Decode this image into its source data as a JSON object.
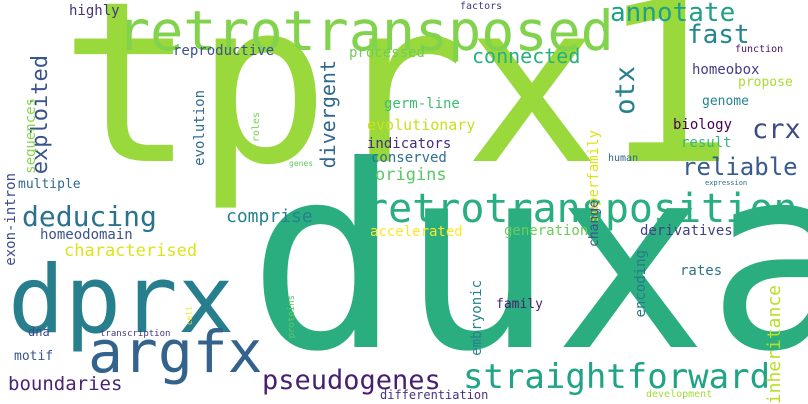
{
  "words": [
    {
      "text": "tprx1",
      "color": "#9ad93c"
    },
    {
      "text": "duxa",
      "color": "#2aae7f"
    },
    {
      "text": "retrotransposed",
      "color": "#81d34d"
    },
    {
      "text": "retrotransposition",
      "color": "#29af7f"
    },
    {
      "text": "dprx",
      "color": "#277f8e"
    },
    {
      "text": "argfx",
      "color": "#33638d"
    },
    {
      "text": "straightforward",
      "color": "#20a486"
    },
    {
      "text": "pseudogenes",
      "color": "#481f70"
    },
    {
      "text": "deducing",
      "color": "#2c728e"
    },
    {
      "text": "annotate",
      "color": "#1fa187"
    },
    {
      "text": "fast",
      "color": "#24868e"
    },
    {
      "text": "connected",
      "color": "#29af7f"
    },
    {
      "text": "reliable",
      "color": "#375b8d"
    },
    {
      "text": "crx",
      "color": "#3e4989"
    },
    {
      "text": "otx",
      "color": "#26818e"
    },
    {
      "text": "comprise",
      "color": "#26828e"
    },
    {
      "text": "characterised",
      "color": "#dde318"
    },
    {
      "text": "exploited",
      "color": "#3a548c"
    },
    {
      "text": "divergent",
      "color": "#31688e"
    },
    {
      "text": "inheritance",
      "color": "#bade28"
    },
    {
      "text": "boundaries",
      "color": "#482475"
    },
    {
      "text": "homeobox",
      "color": "#433e85"
    },
    {
      "text": "reproductive",
      "color": "#3b528b"
    },
    {
      "text": "highly",
      "color": "#46337e"
    },
    {
      "text": "processed",
      "color": "#6ece58"
    },
    {
      "text": "evolutionary",
      "color": "#c8e020"
    },
    {
      "text": "indicators",
      "color": "#472d7b"
    },
    {
      "text": "conserved",
      "color": "#2d708e"
    },
    {
      "text": "origins",
      "color": "#5ac864"
    },
    {
      "text": "germ-line",
      "color": "#3dbc74"
    },
    {
      "text": "evolution",
      "color": "#2f6c8e"
    },
    {
      "text": "biology",
      "color": "#440154"
    },
    {
      "text": "result",
      "color": "#35b779"
    },
    {
      "text": "genome",
      "color": "#25848e"
    },
    {
      "text": "propose",
      "color": "#a8db34"
    },
    {
      "text": "exon-intron",
      "color": "#3e4a89"
    },
    {
      "text": "sequences",
      "color": "#86d549"
    },
    {
      "text": "multiple",
      "color": "#31688e"
    },
    {
      "text": "homeodomain",
      "color": "#3b528b"
    },
    {
      "text": "accelerated",
      "color": "#fde725"
    },
    {
      "text": "generation",
      "color": "#6ccd5a"
    },
    {
      "text": "derivatives",
      "color": "#424086"
    },
    {
      "text": "superfamily",
      "color": "#dde318"
    },
    {
      "text": "change",
      "color": "#3b528b"
    },
    {
      "text": "rates",
      "color": "#2c728e"
    },
    {
      "text": "encoding",
      "color": "#2a788e"
    },
    {
      "text": "family",
      "color": "#481f70"
    },
    {
      "text": "embryonic",
      "color": "#26828e"
    },
    {
      "text": "motif",
      "color": "#3a548c"
    },
    {
      "text": "dna",
      "color": "#3e4989"
    },
    {
      "text": "differentiation",
      "color": "#46327e"
    },
    {
      "text": "development",
      "color": "#a2da37"
    },
    {
      "text": "transcription",
      "color": "#453781"
    },
    {
      "text": "proteins",
      "color": "#5ec962"
    },
    {
      "text": "cell",
      "color": "#f0e51c"
    },
    {
      "text": "roles",
      "color": "#7ad151"
    },
    {
      "text": "human",
      "color": "#31688e"
    },
    {
      "text": "genes",
      "color": "#63cb5f"
    },
    {
      "text": "expression",
      "color": "#2e6e8e"
    },
    {
      "text": "factors",
      "color": "#46337e"
    },
    {
      "text": "function",
      "color": "#471164"
    }
  ]
}
